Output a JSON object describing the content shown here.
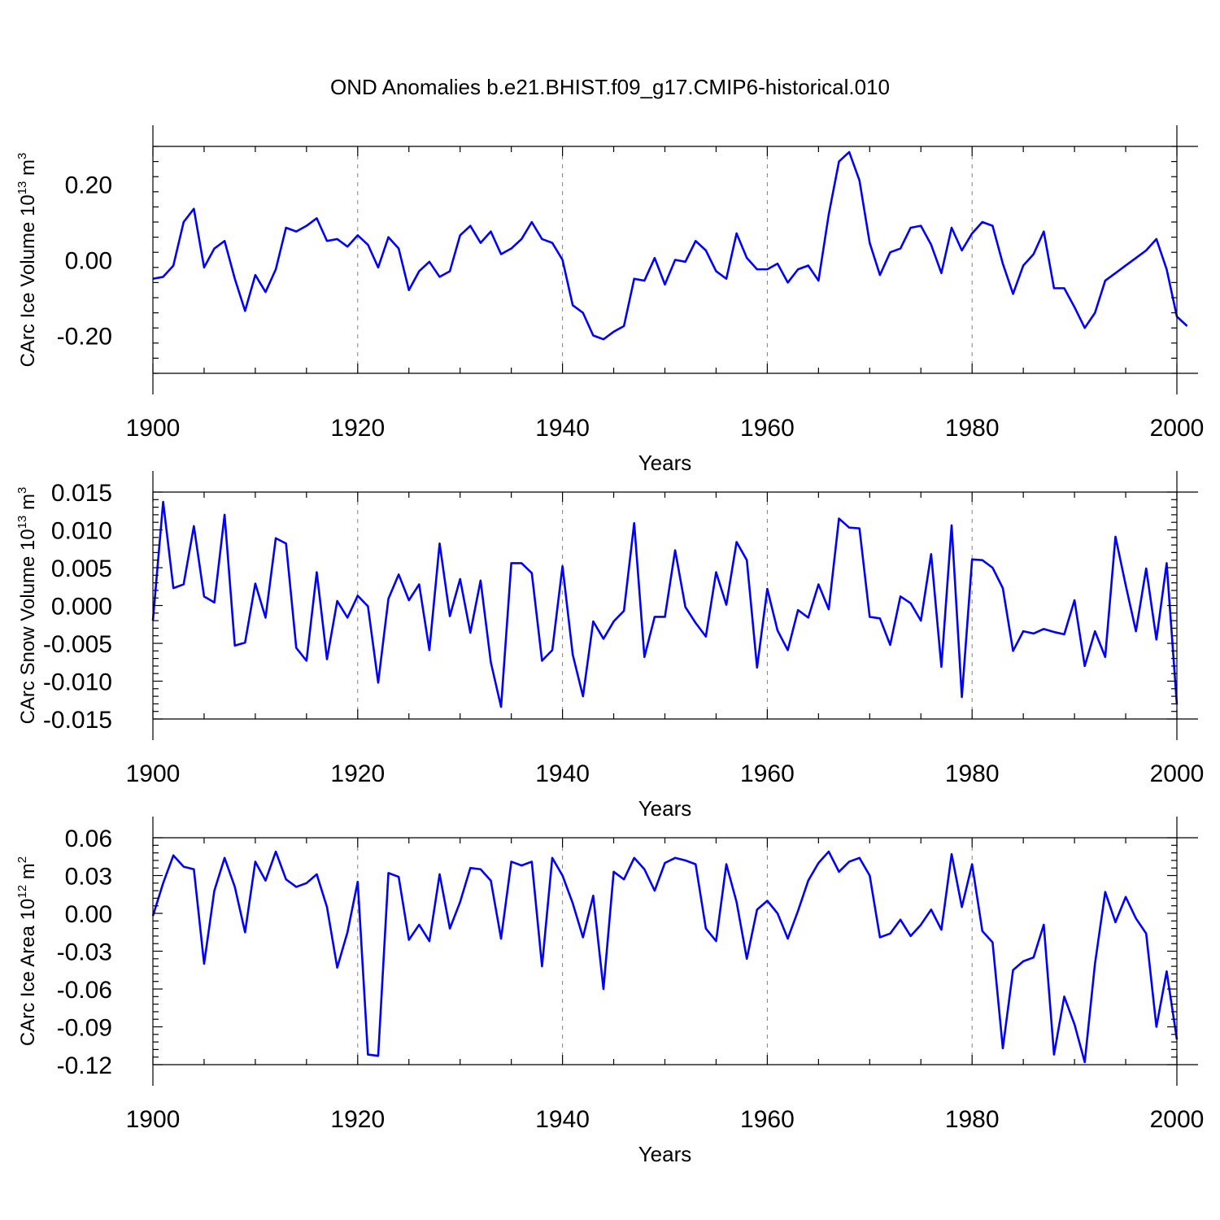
{
  "title": "OND Anomalies b.e21.BHIST.f09_g17.CMIP6-historical.010",
  "colors": {
    "line": "#0000ff",
    "axes": "#000000",
    "grid": "#808080"
  },
  "chart_data": [
    {
      "type": "line",
      "name": "ice-volume",
      "ylabel": "CArc Ice Volume",
      "ylabel_unit": "10",
      "ylabel_exp": "13",
      "ylabel_unit2": "m",
      "ylabel_exp2": "3",
      "xlabel": "Years",
      "xlim": [
        1900,
        2000
      ],
      "ylim": [
        -0.3,
        0.3
      ],
      "xticks": [
        "1900",
        "1920",
        "1940",
        "1960",
        "1980",
        "2000"
      ],
      "yticks": [
        {
          "value": 0.2,
          "label": "0.20"
        },
        {
          "value": 0.0,
          "label": "0.00"
        },
        {
          "value": -0.2,
          "label": "-0.20"
        }
      ],
      "x_start": 1900,
      "values": [
        -0.05,
        -0.045,
        -0.015,
        0.1,
        0.135,
        -0.02,
        0.03,
        0.05,
        -0.05,
        -0.135,
        -0.04,
        -0.085,
        -0.025,
        0.085,
        0.075,
        0.09,
        0.11,
        0.05,
        0.055,
        0.035,
        0.065,
        0.04,
        -0.02,
        0.06,
        0.03,
        -0.08,
        -0.03,
        -0.005,
        -0.045,
        -0.03,
        0.065,
        0.09,
        0.045,
        0.075,
        0.015,
        0.03,
        0.055,
        0.1,
        0.055,
        0.045,
        0.0,
        -0.12,
        -0.14,
        -0.2,
        -0.21,
        -0.19,
        -0.175,
        -0.05,
        -0.055,
        0.005,
        -0.065,
        0.0,
        -0.005,
        0.05,
        0.025,
        -0.03,
        -0.05,
        0.07,
        0.005,
        -0.025,
        -0.025,
        -0.01,
        -0.06,
        -0.025,
        -0.015,
        -0.055,
        0.12,
        0.26,
        0.285,
        0.21,
        0.045,
        -0.04,
        0.02,
        0.03,
        0.085,
        0.09,
        0.04,
        -0.035,
        0.085,
        0.025,
        0.07,
        0.1,
        0.09,
        -0.01,
        -0.09,
        -0.015,
        0.015,
        0.075,
        -0.075,
        -0.075,
        -0.125,
        -0.18,
        -0.14,
        -0.055,
        -0.035,
        -0.015,
        0.005,
        0.025,
        0.055,
        -0.025,
        -0.15,
        -0.175
      ]
    },
    {
      "type": "line",
      "name": "snow-volume",
      "ylabel": "CArc Snow Volume",
      "ylabel_unit": "10",
      "ylabel_exp": "13",
      "ylabel_unit2": "m",
      "ylabel_exp2": "3",
      "xlabel": "Years",
      "xlim": [
        1900,
        2000
      ],
      "ylim": [
        -0.015,
        0.015
      ],
      "xticks": [
        "1900",
        "1920",
        "1940",
        "1960",
        "1980",
        "2000"
      ],
      "yticks": [
        {
          "value": 0.015,
          "label": "0.015"
        },
        {
          "value": 0.01,
          "label": "0.010"
        },
        {
          "value": 0.005,
          "label": "0.005"
        },
        {
          "value": 0.0,
          "label": "0.000"
        },
        {
          "value": -0.005,
          "label": "-0.005"
        },
        {
          "value": -0.01,
          "label": "-0.010"
        },
        {
          "value": -0.015,
          "label": "-0.015"
        }
      ],
      "x_start": 1900,
      "values": [
        -0.002,
        0.0137,
        0.0023,
        0.0028,
        0.0105,
        0.0012,
        0.0004,
        0.012,
        -0.0053,
        -0.0049,
        0.0029,
        -0.0016,
        0.0089,
        0.0082,
        -0.0056,
        -0.0073,
        0.0044,
        -0.0071,
        0.0006,
        -0.0016,
        0.0013,
        -0.0001,
        -0.0102,
        0.0009,
        0.0041,
        0.0007,
        0.0028,
        -0.0059,
        0.0082,
        -0.0014,
        0.0035,
        -0.0036,
        0.0033,
        -0.0075,
        -0.0134,
        0.0056,
        0.0056,
        0.0043,
        -0.0073,
        -0.0059,
        0.0052,
        -0.0065,
        -0.012,
        -0.0021,
        -0.0044,
        -0.0021,
        -0.0007,
        0.0109,
        -0.0068,
        -0.0015,
        -0.0015,
        0.0073,
        -0.0002,
        -0.0023,
        -0.0041,
        0.0044,
        0.0001,
        0.0084,
        0.006,
        -0.0082,
        0.0022,
        -0.0033,
        -0.0059,
        -0.0006,
        -0.0016,
        0.0028,
        -0.0005,
        0.0115,
        0.0103,
        0.0102,
        -0.0015,
        -0.0017,
        -0.0052,
        0.0012,
        0.0003,
        -0.002,
        0.0068,
        -0.0081,
        0.0106,
        -0.0121,
        0.0061,
        0.006,
        0.005,
        0.0023,
        -0.006,
        -0.0034,
        -0.0037,
        -0.0031,
        -0.0035,
        -0.0038,
        0.0007,
        -0.008,
        -0.0034,
        -0.0068,
        0.0091,
        0.0027,
        -0.0034,
        0.0049,
        -0.0045,
        0.0056,
        -0.0131
      ]
    },
    {
      "type": "line",
      "name": "ice-area",
      "ylabel": "CArc Ice Area",
      "ylabel_unit": "10",
      "ylabel_exp": "12",
      "ylabel_unit2": "m",
      "ylabel_exp2": "2",
      "xlabel": "Years",
      "xlim": [
        1900,
        2000
      ],
      "ylim": [
        -0.12,
        0.06
      ],
      "xticks": [
        "1900",
        "1920",
        "1940",
        "1960",
        "1980",
        "2000"
      ],
      "yticks": [
        {
          "value": 0.06,
          "label": "0.06"
        },
        {
          "value": 0.03,
          "label": "0.03"
        },
        {
          "value": 0.0,
          "label": "0.00"
        },
        {
          "value": -0.03,
          "label": "-0.03"
        },
        {
          "value": -0.06,
          "label": "-0.06"
        },
        {
          "value": -0.09,
          "label": "-0.09"
        },
        {
          "value": -0.12,
          "label": "-0.12"
        }
      ],
      "x_start": 1900,
      "values": [
        -0.002,
        0.024,
        0.046,
        0.037,
        0.035,
        -0.04,
        0.018,
        0.044,
        0.021,
        -0.015,
        0.041,
        0.026,
        0.049,
        0.027,
        0.021,
        0.024,
        0.031,
        0.005,
        -0.043,
        -0.015,
        0.025,
        -0.112,
        -0.113,
        0.032,
        0.029,
        -0.021,
        -0.009,
        -0.022,
        0.031,
        -0.012,
        0.009,
        0.036,
        0.035,
        0.026,
        -0.02,
        0.041,
        0.038,
        0.041,
        -0.042,
        0.044,
        0.03,
        0.008,
        -0.019,
        0.014,
        -0.06,
        0.033,
        0.027,
        0.044,
        0.035,
        0.018,
        0.04,
        0.044,
        0.042,
        0.039,
        -0.012,
        -0.022,
        0.039,
        0.009,
        -0.036,
        0.003,
        0.01,
        0.0,
        -0.02,
        0.002,
        0.026,
        0.04,
        0.049,
        0.033,
        0.041,
        0.044,
        0.03,
        -0.019,
        -0.016,
        -0.005,
        -0.018,
        -0.009,
        0.003,
        -0.013,
        0.047,
        0.005,
        0.039,
        -0.014,
        -0.023,
        -0.107,
        -0.045,
        -0.038,
        -0.035,
        -0.009,
        -0.112,
        -0.066,
        -0.088,
        -0.118,
        -0.04,
        0.017,
        -0.007,
        0.013,
        -0.004,
        -0.016,
        -0.09,
        -0.046,
        -0.1
      ]
    }
  ]
}
